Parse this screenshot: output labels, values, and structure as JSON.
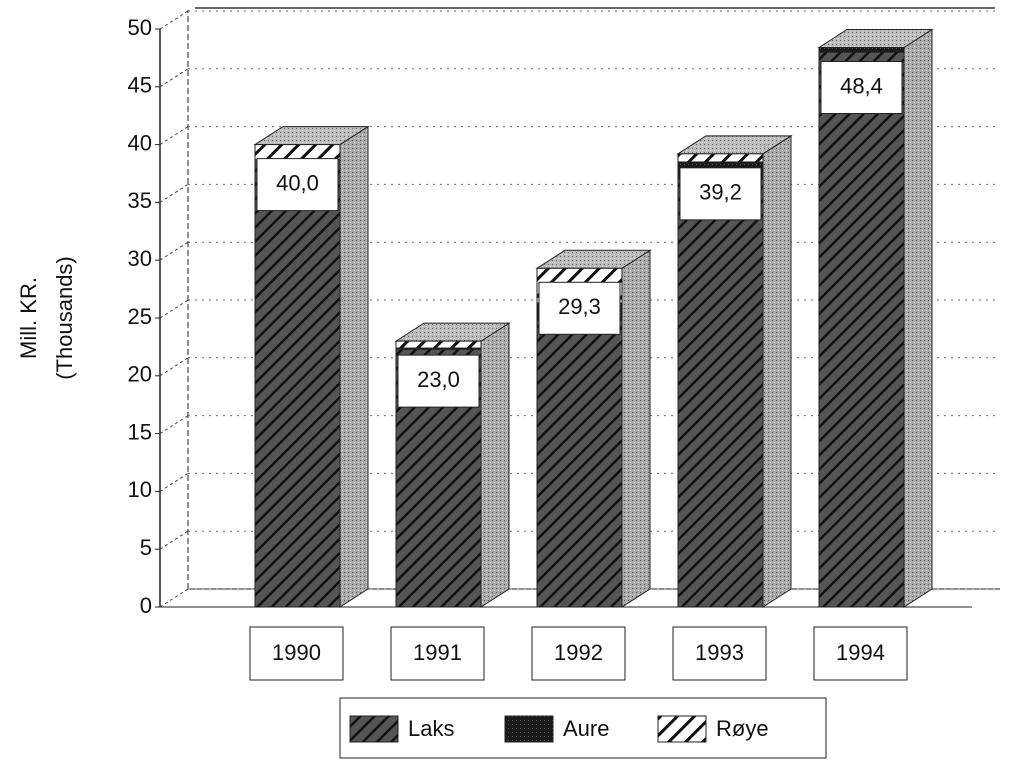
{
  "chart_data": {
    "type": "bar3d_stacked",
    "y_label": [
      "Mill. KR.",
      "(Thousands)"
    ],
    "categories": [
      "1990",
      "1991",
      "1992",
      "1993",
      "1994"
    ],
    "series": [
      {
        "name": "Laks",
        "pattern": "hatch-dark",
        "values": [
          38.7,
          22.3,
          24.8,
          37.0,
          48.0
        ]
      },
      {
        "name": "Aure",
        "pattern": "solid-dark",
        "values": [
          0.0,
          0.1,
          1.5,
          1.5,
          0.4
        ]
      },
      {
        "name": "Røye",
        "pattern": "hatch-light",
        "values": [
          1.3,
          0.6,
          3.0,
          0.7,
          0.0
        ]
      }
    ],
    "totals": [
      40.0,
      23.0,
      29.3,
      39.2,
      48.4
    ],
    "total_labels": [
      "40,0",
      "23,0",
      "29,3",
      "39,2",
      "48,4"
    ],
    "ylim": [
      0,
      50
    ],
    "yticks": [
      0,
      5,
      10,
      15,
      20,
      25,
      30,
      35,
      40,
      45,
      50
    ],
    "grid": true
  }
}
